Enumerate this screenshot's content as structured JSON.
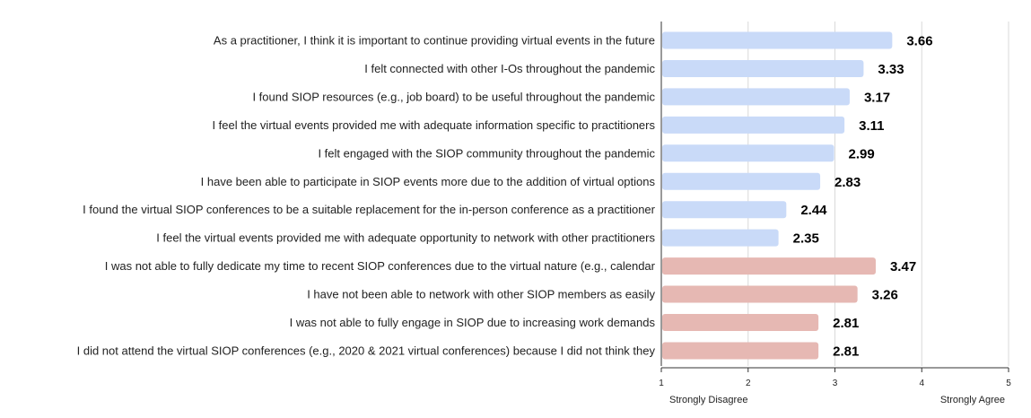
{
  "chart_data": {
    "type": "bar",
    "orientation": "horizontal",
    "title": "",
    "xlabel": "",
    "ylabel": "",
    "xlim": [
      1,
      5
    ],
    "x_ticks": [
      1,
      2,
      3,
      4,
      5
    ],
    "x_anchor_labels": {
      "min": "Strongly Disagree",
      "max": "Strongly Agree"
    },
    "grid": true,
    "legend": "none",
    "series_colors": [
      "#c9daf8",
      "#e6b8b3"
    ],
    "categories": [
      "As a practitioner, I think it is important to continue providing virtual events in the future",
      "I felt connected with other I-Os throughout the pandemic",
      "I found SIOP resources (e.g., job board) to be useful throughout the pandemic",
      "I feel the virtual events provided me with adequate information specific to practitioners",
      "I  felt engaged with the SIOP community throughout the pandemic",
      "I have been able to participate in SIOP events more due to the addition of virtual options",
      "I found the virtual SIOP conferences to be a suitable replacement for the in-person conference as a practitioner",
      "I feel the virtual events provided me with adequate opportunity to network with other practitioners",
      "I was not able to fully dedicate my time to recent SIOP conferences due to the virtual nature (e.g., calendar",
      "I have not been able to network with other SIOP members as easily",
      "I was not able to fully engage in SIOP due to increasing work demands",
      "I did not attend the virtual SIOP conferences (e.g., 2020 & 2021 virtual conferences) because I did not think they"
    ],
    "values": [
      3.66,
      3.33,
      3.17,
      3.11,
      2.99,
      2.83,
      2.44,
      2.35,
      3.47,
      3.26,
      2.81,
      2.81
    ],
    "value_labels": [
      "3.66",
      "3.33",
      "3.17",
      "3.11",
      "2.99",
      "2.83",
      "2.44",
      "2.35",
      "3.47",
      "3.26",
      "2.81",
      "2.81"
    ],
    "color_group": [
      0,
      0,
      0,
      0,
      0,
      0,
      0,
      0,
      1,
      1,
      1,
      1
    ]
  }
}
